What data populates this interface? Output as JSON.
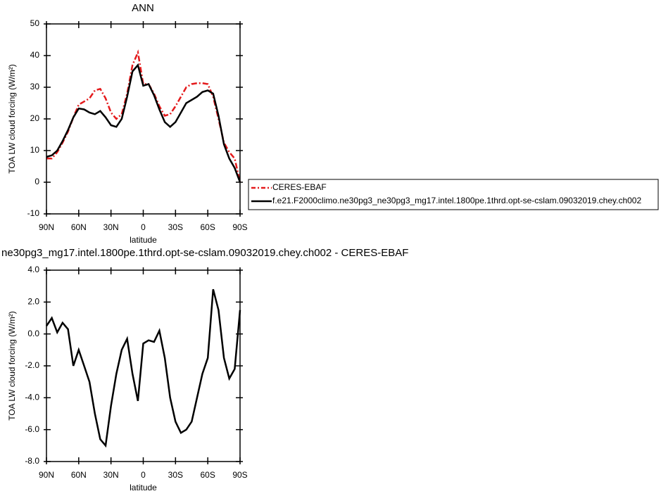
{
  "chart_data": [
    {
      "type": "line",
      "title": "ANN",
      "x_label": "latitude",
      "y_label": "TOA LW cloud forcing (W/m²)",
      "x": [
        90,
        85,
        80,
        75,
        70,
        65,
        60,
        55,
        50,
        45,
        40,
        35,
        30,
        25,
        20,
        15,
        10,
        5,
        0,
        -5,
        -10,
        -15,
        -20,
        -25,
        -30,
        -35,
        -40,
        -45,
        -50,
        -55,
        -60,
        -65,
        -70,
        -75,
        -80,
        -85,
        -90
      ],
      "xlim": [
        90,
        -90
      ],
      "xticks": [
        {
          "value": 90,
          "label": "90N"
        },
        {
          "value": 60,
          "label": "60N"
        },
        {
          "value": 30,
          "label": "30N"
        },
        0,
        {
          "value": -30,
          "label": "30S"
        },
        {
          "value": -60,
          "label": "60S"
        },
        {
          "value": -90,
          "label": "90S"
        }
      ],
      "ylim": [
        -10,
        50
      ],
      "yticks": [
        -10,
        0,
        10,
        20,
        30,
        40,
        50
      ],
      "legend": "right",
      "series": [
        {
          "name": "CERES-EBAF",
          "color": "#e41a1c",
          "dash": true,
          "values": [
            7.5,
            7.5,
            9.5,
            12.5,
            16,
            20.5,
            24.5,
            25.5,
            26.5,
            29,
            29.5,
            26.5,
            22,
            20,
            21.5,
            28,
            37,
            41,
            31,
            31,
            28,
            24,
            21,
            21.5,
            24,
            27,
            30,
            31,
            31.3,
            31.3,
            31,
            27,
            20,
            12.5,
            9.5,
            7.5,
            0
          ]
        },
        {
          "name": "f.e21.F2000climo.ne30pg3_ne30pg3_mg17.intel.1800pe.1thrd.opt-se-cslam.09032019.chey.ch002",
          "color": "#000000",
          "dash": false,
          "values": [
            8,
            8.5,
            10,
            13,
            16.5,
            20.5,
            23.3,
            23,
            22,
            21.5,
            22.5,
            20.5,
            18,
            17.5,
            20,
            27,
            35,
            37,
            30.5,
            31,
            27.5,
            23,
            19,
            17.5,
            19,
            22,
            25,
            26,
            27,
            28.5,
            29,
            28,
            21,
            12,
            7.5,
            4.5,
            0
          ]
        }
      ]
    },
    {
      "type": "line",
      "title": "ne30pg3_mg17.intel.1800pe.1thrd.opt-se-cslam.09032019.chey.ch002 - CERES-EBAF",
      "x_label": "latitude",
      "y_label": "TOA LW cloud forcing (W/m²)",
      "x": [
        90,
        85,
        80,
        75,
        70,
        65,
        60,
        55,
        50,
        45,
        40,
        35,
        30,
        25,
        20,
        15,
        10,
        5,
        0,
        -5,
        -10,
        -15,
        -20,
        -25,
        -30,
        -35,
        -40,
        -45,
        -50,
        -55,
        -60,
        -65,
        -70,
        -75,
        -80,
        -85,
        -90
      ],
      "xlim": [
        90,
        -90
      ],
      "xticks": [
        {
          "value": 90,
          "label": "90N"
        },
        {
          "value": 60,
          "label": "60N"
        },
        {
          "value": 30,
          "label": "30N"
        },
        0,
        {
          "value": -30,
          "label": "30S"
        },
        {
          "value": -60,
          "label": "60S"
        },
        {
          "value": -90,
          "label": "90S"
        }
      ],
      "ylim": [
        -8,
        4
      ],
      "yticks": [
        {
          "value": -8,
          "label": "-8.0"
        },
        {
          "value": -6,
          "label": "-6.0"
        },
        {
          "value": -4,
          "label": "-4.0"
        },
        {
          "value": -2,
          "label": "-2.0"
        },
        {
          "value": 0,
          "label": "0.0"
        },
        {
          "value": 2,
          "label": "2.0"
        },
        {
          "value": 4,
          "label": "4.0"
        }
      ],
      "series": [
        {
          "color": "#000000",
          "dash": false,
          "values": [
            0.5,
            1.0,
            0.1,
            0.7,
            0.3,
            -2.0,
            -1.0,
            -2.0,
            -3.0,
            -5.0,
            -6.6,
            -7.0,
            -4.5,
            -2.5,
            -1.0,
            -0.3,
            -2.5,
            -4.2,
            -0.6,
            -0.4,
            -0.5,
            0.2,
            -1.5,
            -4.0,
            -5.5,
            -6.2,
            -6.0,
            -5.5,
            -4.0,
            -2.5,
            -1.5,
            2.8,
            1.5,
            -1.5,
            -2.8,
            -2.2,
            1.5
          ]
        }
      ]
    }
  ]
}
